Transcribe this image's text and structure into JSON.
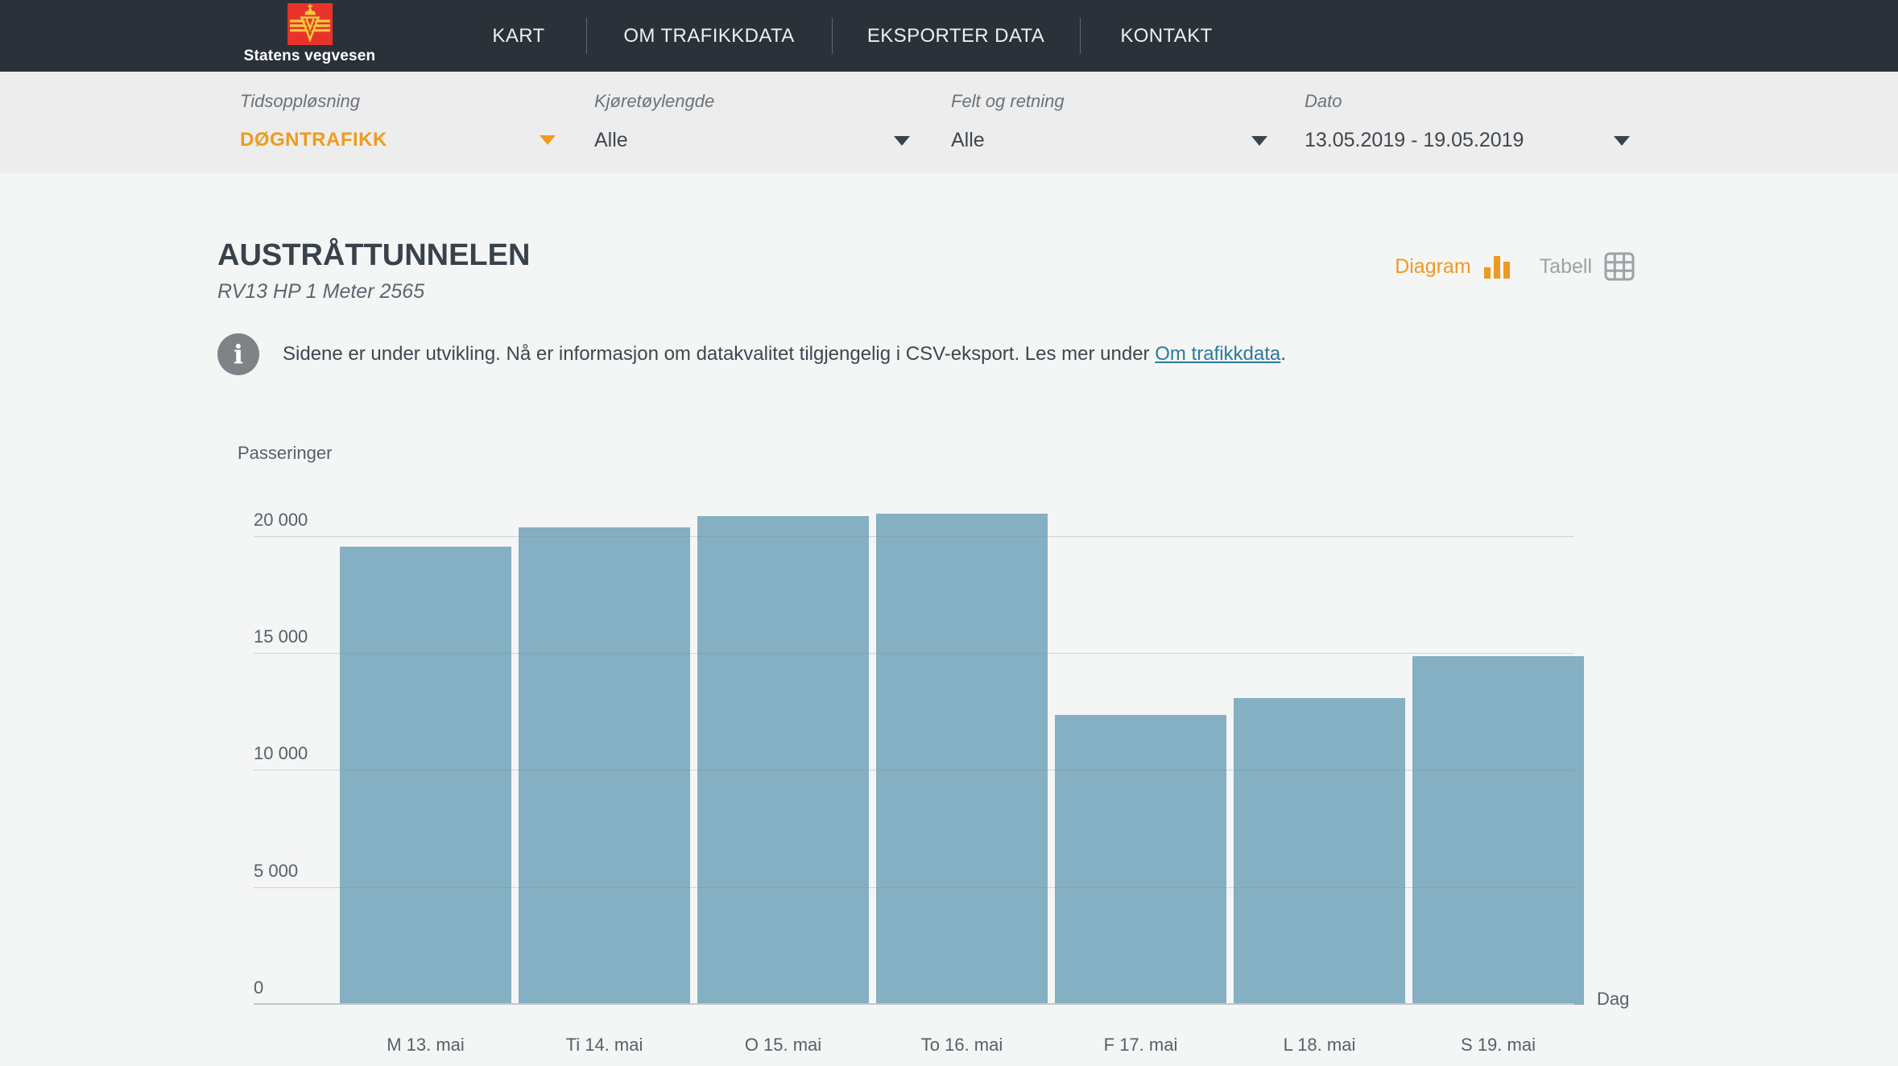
{
  "brand": {
    "name": "Statens vegvesen"
  },
  "nav": {
    "items": [
      {
        "label": "KART"
      },
      {
        "label": "OM TRAFIKKDATA"
      },
      {
        "label": "EKSPORTER DATA"
      },
      {
        "label": "KONTAKT"
      }
    ]
  },
  "filters": {
    "tidsopplosning": {
      "label": "Tidsoppløsning",
      "value": "DØGNTRAFIKK"
    },
    "kjoretoylengde": {
      "label": "Kjøretøylengde",
      "value": "Alle"
    },
    "felt_og_retning": {
      "label": "Felt og retning",
      "value": "Alle"
    },
    "dato": {
      "label": "Dato",
      "value": "13.05.2019 - 19.05.2019"
    }
  },
  "station": {
    "title": "AUSTRÅTTUNNELEN",
    "subtitle": "RV13 HP 1 Meter 2565"
  },
  "view_toggle": {
    "diagram_label": "Diagram",
    "tabell_label": "Tabell"
  },
  "notice": {
    "text_before_link": "Sidene er under utvikling. Nå er informasjon om datakvalitet tilgjengelig i CSV-eksport. Les mer under ",
    "link_text": "Om trafikkdata",
    "text_after_link": "."
  },
  "icons": {
    "diagram": "bar-chart-icon",
    "tabell": "table-grid-icon",
    "notice": "info-icon",
    "dropdown": "chevron-down-icon",
    "brand": "statens-vegvesen-logo"
  },
  "colors": {
    "accent_orange": "#EE9B1E",
    "link_teal": "#2C7A99",
    "bar_blue": "#85AFC2",
    "header_bg": "#2A3138",
    "filterbar_bg": "#EDEDED",
    "brand_red": "#E8332A",
    "brand_gold": "#F2C83D"
  },
  "chart_data": {
    "type": "bar",
    "title": "",
    "ylabel": "Passeringer",
    "xlabel": "Dag",
    "categories": [
      "M 13. mai",
      "Ti 14. mai",
      "O 15. mai",
      "To 16. mai",
      "F 17. mai",
      "L 18. mai",
      "S 19. mai"
    ],
    "values": [
      19600,
      20400,
      20900,
      21000,
      12400,
      13100,
      14900
    ],
    "yticks": [
      0,
      5000,
      10000,
      15000,
      20000
    ],
    "ytick_labels": [
      "0",
      "5 000",
      "10 000",
      "15 000",
      "20 000"
    ],
    "ylim": [
      0,
      21500
    ],
    "grid": "horizontal",
    "legend": "none",
    "bar_color": "#85AFC2"
  }
}
